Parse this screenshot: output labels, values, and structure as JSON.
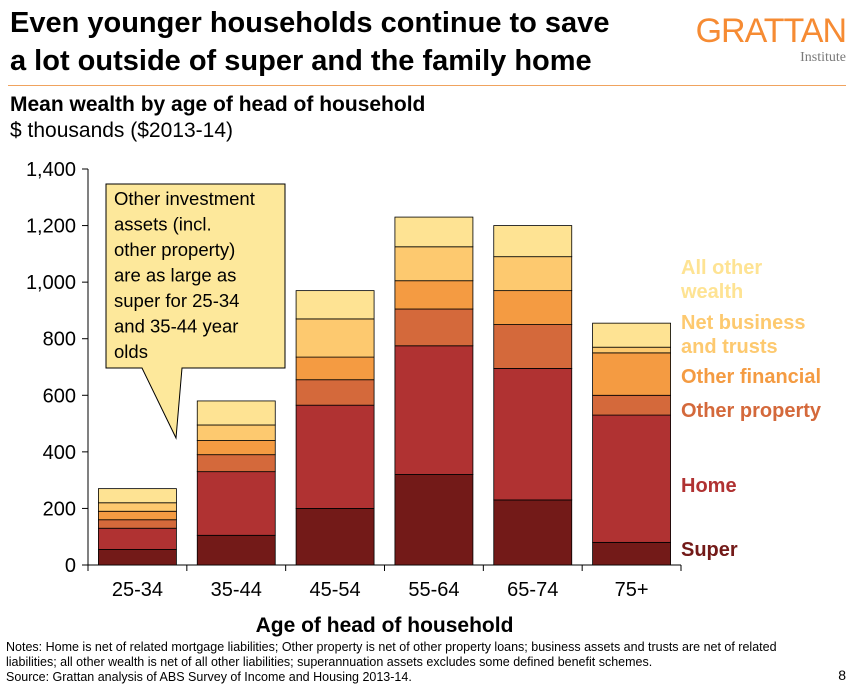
{
  "header": {
    "title_line1": "Even younger households continue to save",
    "title_line2": "a lot outside of super and the family home",
    "logo_main": "GRATTAN",
    "logo_sub": "Institute"
  },
  "chart_data": {
    "type": "bar",
    "stacked": true,
    "title": "Mean wealth by age of head of household",
    "subtitle": "$ thousands ($2013-14)",
    "xlabel": "Age of head of household",
    "ylabel": "",
    "ylim": [
      0,
      1400
    ],
    "yticks": [
      0,
      200,
      400,
      600,
      800,
      1000,
      1200,
      1400
    ],
    "ytick_labels": [
      "0",
      "200",
      "400",
      "600",
      "800",
      "1,000",
      "1,200",
      "1,400"
    ],
    "categories": [
      "25-34",
      "35-44",
      "45-54",
      "55-64",
      "65-74",
      "75+"
    ],
    "series": [
      {
        "name": "Super",
        "color": "#731a18",
        "values": [
          55,
          105,
          200,
          320,
          230,
          80
        ]
      },
      {
        "name": "Home",
        "color": "#b03232",
        "values": [
          75,
          225,
          365,
          455,
          465,
          450
        ]
      },
      {
        "name": "Other property",
        "color": "#d4693b",
        "values": [
          30,
          60,
          90,
          130,
          155,
          70
        ]
      },
      {
        "name": "Other financial",
        "color": "#f49b42",
        "values": [
          30,
          50,
          80,
          100,
          120,
          150
        ]
      },
      {
        "name": "Net business and trusts",
        "color": "#fdc96f",
        "values": [
          30,
          55,
          135,
          120,
          120,
          20
        ]
      },
      {
        "name": "All other wealth",
        "color": "#fee393",
        "values": [
          50,
          85,
          100,
          105,
          110,
          85
        ]
      }
    ],
    "legend_labels": [
      {
        "lines": [
          "Super"
        ],
        "color": "#731a18"
      },
      {
        "lines": [
          "Home"
        ],
        "color": "#b03232"
      },
      {
        "lines": [
          "Other property"
        ],
        "color": "#d4693b"
      },
      {
        "lines": [
          "Other financial"
        ],
        "color": "#f49b42"
      },
      {
        "lines": [
          "Net business",
          "and trusts"
        ],
        "color": "#fdc96f"
      },
      {
        "lines": [
          "All other",
          "wealth"
        ],
        "color": "#fee393"
      }
    ],
    "callout": {
      "lines": [
        "Other investment",
        "assets (incl.",
        "other property)",
        "are as large as",
        "super for 25-34",
        "and 35-44 year",
        "olds"
      ],
      "fill": "#fde89b"
    }
  },
  "notes": {
    "line1": "Notes: Home is net of related mortgage liabilities; Other property is net of other property loans; business assets and trusts are net of related",
    "line2": "liabilities; all other wealth is net of all other liabilities; superannuation assets excludes some defined benefit schemes.",
    "line3": "Source: Grattan analysis of ABS Survey of Income and Housing 2013-14."
  },
  "page_number": "8"
}
